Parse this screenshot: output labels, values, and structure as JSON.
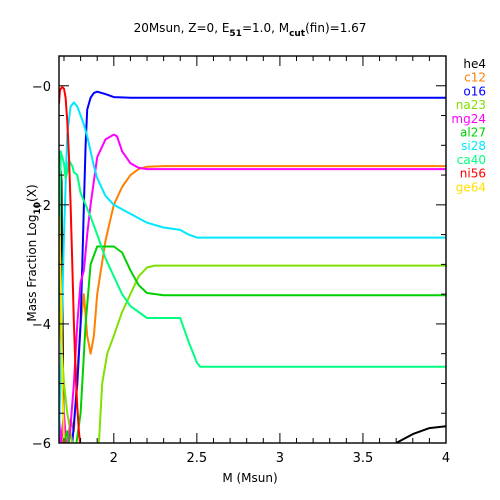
{
  "chart_data": {
    "type": "line",
    "title": "20Msun, Z=0, E",
    "title_sub": "51",
    "title_mid": "=1.0, M",
    "title_sub2": "cut",
    "title_end": "(fin)=1.67",
    "xlabel": "M (Msun)",
    "ylabel_pre": "Mass Fraction Log",
    "ylabel_sub": "10",
    "ylabel_post": "(X)",
    "xlim": [
      1.67,
      4.0
    ],
    "ylim": [
      -6,
      0.5
    ],
    "x_ticks": [
      2,
      2.5,
      3,
      3.5,
      4
    ],
    "x_tick_labels": [
      "2",
      "2.5",
      "3",
      "3.5",
      "4"
    ],
    "y_ticks": [
      0,
      -2,
      -4,
      -6
    ],
    "y_tick_labels": [
      "0",
      "2",
      "4",
      "6"
    ],
    "y_tick_prefix": "−",
    "legend_position": "right",
    "series": [
      {
        "name": "he4",
        "color": "#000000",
        "x": [
          1.67,
          1.685,
          1.69,
          1.7,
          3.6,
          3.7,
          3.8,
          3.9,
          4.0
        ],
        "y": [
          -1.1,
          -1.6,
          -3.5,
          -6.5,
          -6.5,
          -6.0,
          -5.85,
          -5.75,
          -5.72
        ]
      },
      {
        "name": "c12",
        "color": "#ff8000",
        "x": [
          1.67,
          1.68,
          1.7,
          1.72,
          1.74,
          1.76,
          1.78,
          1.8,
          1.82,
          1.84,
          1.86,
          1.88,
          1.9,
          1.95,
          2.0,
          2.05,
          2.1,
          2.15,
          2.2,
          2.3,
          4.0
        ],
        "y": [
          -6.5,
          -5.9,
          -6.2,
          -6.0,
          -5.6,
          -5.8,
          -4.8,
          -4.0,
          -3.5,
          -4.2,
          -4.5,
          -4.2,
          -3.5,
          -2.6,
          -2.0,
          -1.7,
          -1.5,
          -1.4,
          -1.36,
          -1.35,
          -1.35
        ]
      },
      {
        "name": "o16",
        "color": "#0000ff",
        "x": [
          1.67,
          1.69,
          1.72,
          1.75,
          1.78,
          1.8,
          1.81,
          1.82,
          1.83,
          1.84,
          1.86,
          1.88,
          1.9,
          1.95,
          2.0,
          2.1,
          2.2,
          2.3,
          4.0
        ],
        "y": [
          -6.5,
          -6.3,
          -6.5,
          -6.0,
          -5.0,
          -4.0,
          -3.0,
          -2.0,
          -1.0,
          -0.4,
          -0.2,
          -0.12,
          -0.1,
          -0.14,
          -0.19,
          -0.2,
          -0.2,
          -0.2,
          -0.2
        ]
      },
      {
        "name": "na23",
        "color": "#80e000",
        "x": [
          1.67,
          1.68,
          1.7,
          1.72,
          1.75,
          1.8,
          1.85,
          1.9,
          1.91,
          1.93,
          1.96,
          2.0,
          2.05,
          2.1,
          2.15,
          2.2,
          2.25,
          2.3,
          2.4,
          4.0
        ],
        "y": [
          -2.7,
          -4.2,
          -5.0,
          -5.5,
          -6.0,
          -6.4,
          -6.5,
          -6.3,
          -6.0,
          -5.0,
          -4.5,
          -4.2,
          -3.8,
          -3.5,
          -3.2,
          -3.05,
          -3.02,
          -3.02,
          -3.02,
          -3.02
        ]
      },
      {
        "name": "mg24",
        "color": "#ff00ff",
        "x": [
          1.67,
          1.68,
          1.7,
          1.72,
          1.74,
          1.76,
          1.78,
          1.8,
          1.82,
          1.84,
          1.86,
          1.88,
          1.9,
          1.95,
          2.0,
          2.02,
          2.05,
          2.1,
          2.15,
          2.2,
          2.3,
          4.0
        ],
        "y": [
          -5.5,
          -6.0,
          -5.5,
          -6.3,
          -5.7,
          -5.0,
          -4.0,
          -3.3,
          -3.1,
          -2.5,
          -2.0,
          -1.6,
          -1.2,
          -0.9,
          -0.82,
          -0.85,
          -1.1,
          -1.3,
          -1.38,
          -1.4,
          -1.4,
          -1.4
        ]
      },
      {
        "name": "al27",
        "color": "#00d000",
        "x": [
          1.67,
          1.7,
          1.72,
          1.75,
          1.8,
          1.83,
          1.86,
          1.9,
          1.95,
          2.0,
          2.05,
          2.1,
          2.15,
          2.2,
          2.3,
          2.4,
          2.5,
          4.0
        ],
        "y": [
          -6.5,
          -6.0,
          -5.8,
          -6.5,
          -5.5,
          -4.0,
          -3.0,
          -2.7,
          -2.7,
          -2.7,
          -2.8,
          -3.1,
          -3.35,
          -3.48,
          -3.52,
          -3.52,
          -3.52,
          -3.52
        ]
      },
      {
        "name": "si28",
        "color": "#00e8ff",
        "x": [
          1.67,
          1.7,
          1.72,
          1.74,
          1.76,
          1.78,
          1.8,
          1.82,
          1.84,
          1.86,
          1.88,
          1.9,
          1.95,
          2.0,
          2.1,
          2.2,
          2.3,
          2.4,
          2.45,
          2.5,
          4.0
        ],
        "y": [
          -5.9,
          -2.5,
          -0.8,
          -0.35,
          -0.28,
          -0.35,
          -0.5,
          -0.65,
          -0.85,
          -1.1,
          -1.35,
          -1.55,
          -1.85,
          -2.0,
          -2.15,
          -2.3,
          -2.38,
          -2.42,
          -2.5,
          -2.55,
          -2.55
        ]
      },
      {
        "name": "ca40",
        "color": "#00ff80",
        "x": [
          1.67,
          1.68,
          1.69,
          1.7,
          1.71,
          1.72,
          1.73,
          1.74,
          1.75,
          1.76,
          1.78,
          1.8,
          1.83,
          1.86,
          1.9,
          1.95,
          2.0,
          2.05,
          2.1,
          2.2,
          2.3,
          2.4,
          2.45,
          2.5,
          2.52,
          4.0
        ],
        "y": [
          -3.8,
          -1.1,
          -1.2,
          -1.3,
          -1.55,
          -1.45,
          -1.25,
          -1.3,
          -1.35,
          -1.45,
          -1.5,
          -1.8,
          -2.0,
          -2.2,
          -2.5,
          -2.9,
          -3.2,
          -3.5,
          -3.7,
          -3.9,
          -3.9,
          -3.9,
          -4.3,
          -4.65,
          -4.72,
          -4.72
        ]
      },
      {
        "name": "ni56",
        "color": "#ff0000",
        "x": [
          1.67,
          1.675,
          1.68,
          1.69,
          1.7,
          1.71,
          1.72,
          1.73,
          1.74,
          1.75,
          1.76,
          1.77,
          1.78,
          1.79,
          1.8,
          1.81,
          1.82,
          1.83
        ],
        "y": [
          -0.3,
          -0.1,
          -0.05,
          -0.02,
          -0.05,
          -0.2,
          -0.6,
          -1.2,
          -2.0,
          -3.0,
          -4.0,
          -4.8,
          -5.4,
          -5.8,
          -6.1,
          -6.3,
          -6.45,
          -6.5
        ]
      },
      {
        "name": "ge64",
        "color": "#ffe000",
        "x": [
          1.67,
          1.675,
          1.68,
          1.685,
          1.69,
          1.7,
          1.71,
          1.72
        ],
        "y": [
          -2.2,
          -2.6,
          -3.2,
          -4.0,
          -5.0,
          -6.0,
          -6.3,
          -6.5
        ]
      }
    ]
  }
}
